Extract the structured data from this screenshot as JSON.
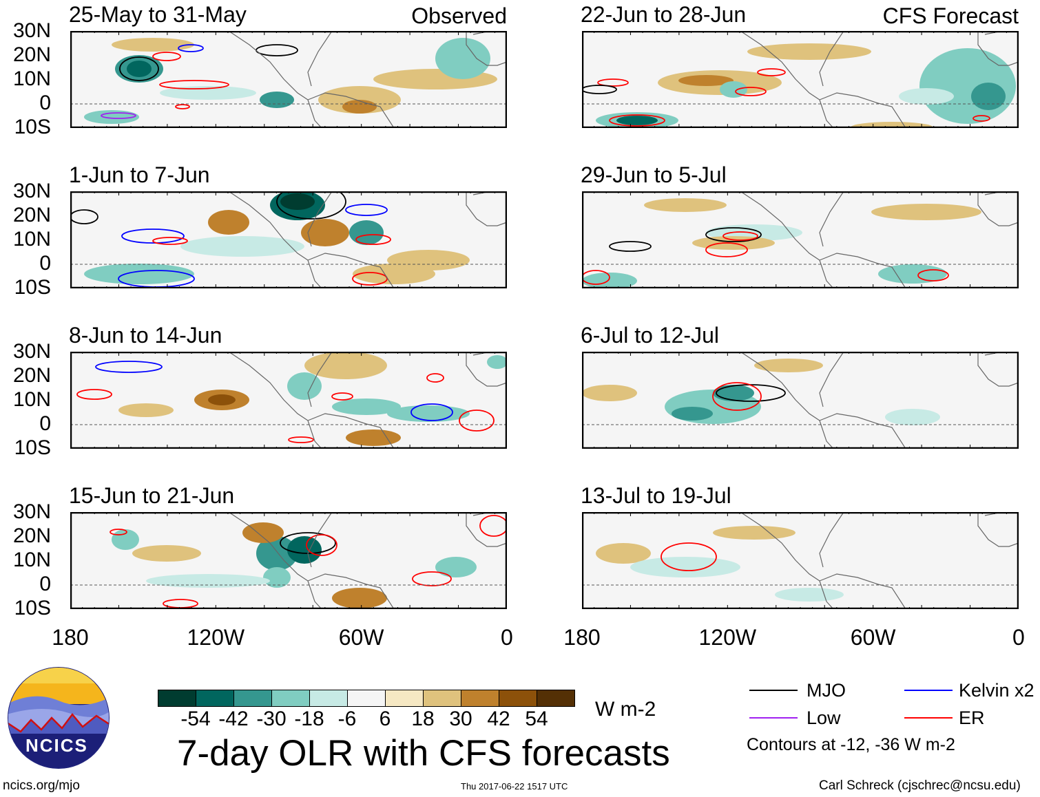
{
  "panels": [
    {
      "title": "25-May to 31-May",
      "tag": "Observed"
    },
    {
      "title": "22-Jun to 28-Jun",
      "tag": "CFS Forecast"
    },
    {
      "title": "1-Jun to 7-Jun"
    },
    {
      "title": "29-Jun to 5-Jul"
    },
    {
      "title": "8-Jun to 14-Jun"
    },
    {
      "title": "6-Jul to 12-Jul"
    },
    {
      "title": "15-Jun to 21-Jun"
    },
    {
      "title": "13-Jul to 19-Jul"
    }
  ],
  "lat_labels": [
    "30N",
    "20N",
    "10N",
    "0",
    "10S"
  ],
  "lon_labels": [
    "180",
    "120W",
    "60W",
    "0"
  ],
  "colorbar": {
    "colors": [
      "#003c30",
      "#01665e",
      "#35978f",
      "#80cdc1",
      "#c7eae5",
      "#f5f5f5",
      "#f6e8c3",
      "#dfc27d",
      "#bf812d",
      "#8c510a",
      "#543005"
    ],
    "labels": [
      "-54",
      "-42",
      "-30",
      "-18",
      "-6",
      "6",
      "18",
      "30",
      "42",
      "54"
    ],
    "units": "W m-2"
  },
  "title": "7-day OLR with CFS forecasts",
  "legend": {
    "items": [
      {
        "label": "MJO",
        "color": "#000000"
      },
      {
        "label": "Kelvin x2",
        "color": "#0000ff"
      },
      {
        "label": "Low",
        "color": "#a020f0"
      },
      {
        "label": "ER",
        "color": "#ff0000"
      }
    ],
    "note": "Contours at -12, -36 W m-2"
  },
  "logo": {
    "text": "NCICS"
  },
  "footer": {
    "url": "ncics.org/mjo",
    "timestamp": "Thu 2017-06-22 1517 UTC",
    "credit": "Carl Schreck (cjschrec@ncsu.edu)"
  }
}
